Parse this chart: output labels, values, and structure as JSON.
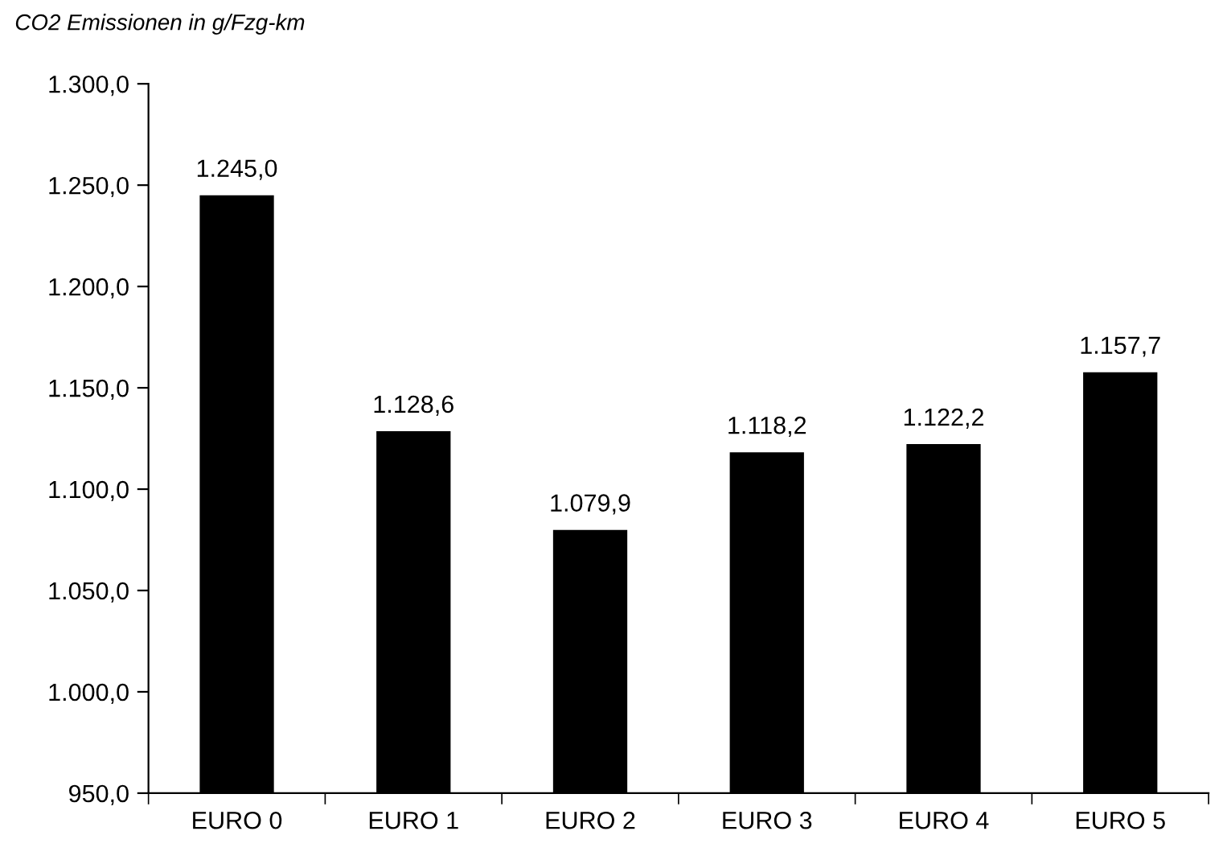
{
  "chart_data": {
    "type": "bar",
    "ylabel": "CO2 Emissionen in g/Fzg-km",
    "categories": [
      "EURO 0",
      "EURO 1",
      "EURO 2",
      "EURO 3",
      "EURO 4",
      "EURO 5"
    ],
    "values": [
      1245.0,
      1128.6,
      1079.9,
      1118.2,
      1122.2,
      1157.7
    ],
    "value_labels": [
      "1.245,0",
      "1.128,6",
      "1.079,9",
      "1.118,2",
      "1.122,2",
      "1.157,7"
    ],
    "color": "#000000",
    "ylim": [
      950,
      1300
    ],
    "yticks": [
      {
        "value": 950,
        "label": "950,0"
      },
      {
        "value": 1000,
        "label": "1.000,0"
      },
      {
        "value": 1050,
        "label": "1.050,0"
      },
      {
        "value": 1100,
        "label": "1.100,0"
      },
      {
        "value": 1150,
        "label": "1.150,0"
      },
      {
        "value": 1200,
        "label": "1.200,0"
      },
      {
        "value": 1250,
        "label": "1.250,0"
      },
      {
        "value": 1300,
        "label": "1.300,0"
      }
    ],
    "grid": false,
    "legend": false
  }
}
